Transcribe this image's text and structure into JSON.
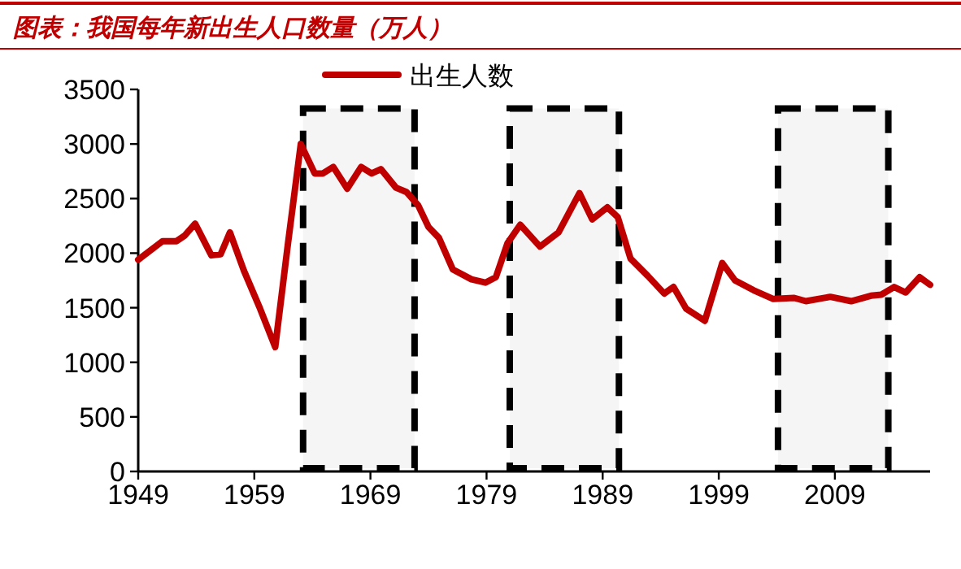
{
  "chart_data": {
    "type": "line",
    "title": "图表：我国每年新出生人口数量（万人）",
    "xlim": [
      1949,
      2017.2
    ],
    "xticks": [
      1949,
      1959,
      1969,
      1979,
      1989,
      1999,
      2009
    ],
    "ylim": [
      0,
      3500
    ],
    "yticks": [
      0,
      500,
      1000,
      1500,
      2000,
      2500,
      3000,
      3500
    ],
    "legend": "top",
    "grid": false,
    "line_style": "solid",
    "marker": "none",
    "bands": [
      {
        "axis": "x",
        "from": 1963.2,
        "to": 1972.8,
        "color": "#000000"
      },
      {
        "axis": "x",
        "from": 1981.0,
        "to": 1990.4,
        "color": "#000000"
      },
      {
        "axis": "x",
        "from": 2004.1,
        "to": 2013.6,
        "color": "#000000"
      }
    ],
    "series": [
      {
        "name": "出生人数",
        "color": "#c00000",
        "x": [
          1949,
          1951.1,
          1952.3,
          1953,
          1953.9,
          1955.3,
          1956.1,
          1956.9,
          1958.1,
          1959.5,
          1960.8,
          1961.9,
          1963,
          1964.2,
          1964.9,
          1965.8,
          1967,
          1968.2,
          1969.1,
          1969.9,
          1971.2,
          1972.1,
          1973.1,
          1974,
          1974.9,
          1976.1,
          1977.7,
          1978.9,
          1979.8,
          1980.8,
          1981.9,
          1983.6,
          1985.2,
          1987,
          1988.1,
          1989.4,
          1990.3,
          1991.4,
          1992.9,
          1994.3,
          1995.1,
          1996.2,
          1997.8,
          1999.3,
          2000.4,
          2002,
          2003.7,
          2005.5,
          2006.5,
          2008.6,
          2010.4,
          2012.1,
          2013,
          2014.1,
          2015.1,
          2016.3,
          2017.2
        ],
        "values": [
          1940,
          2110,
          2110,
          2160,
          2270,
          1980,
          1990,
          2190,
          1840,
          1490,
          1140,
          2090,
          3000,
          2730,
          2730,
          2790,
          2590,
          2790,
          2730,
          2770,
          2600,
          2560,
          2440,
          2240,
          2140,
          1850,
          1760,
          1730,
          1780,
          2090,
          2260,
          2060,
          2190,
          2550,
          2310,
          2420,
          2330,
          1950,
          1790,
          1630,
          1690,
          1490,
          1380,
          1910,
          1750,
          1660,
          1580,
          1590,
          1560,
          1600,
          1560,
          1610,
          1620,
          1690,
          1640,
          1780,
          1710
        ]
      }
    ]
  }
}
